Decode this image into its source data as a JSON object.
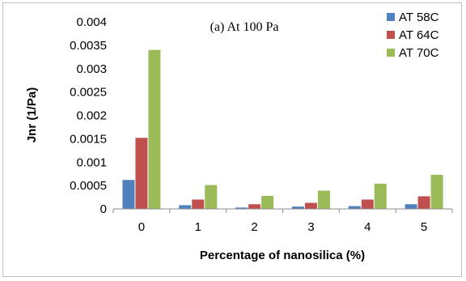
{
  "chart_data": {
    "type": "bar",
    "annotation": "(a) At 100 Pa",
    "xlabel": "Percentage of nanosilica  (%)",
    "ylabel": "Jnr (1/Pa)",
    "categories": [
      "0",
      "1",
      "2",
      "3",
      "4",
      "5"
    ],
    "ylim": [
      0,
      0.004
    ],
    "yticks": [
      "0",
      "0.0005",
      "0.001",
      "0.0015",
      "0.002",
      "0.0025",
      "0.003",
      "0.0035",
      "0.004"
    ],
    "series": [
      {
        "name": "AT 58C",
        "color": "#4f81bd",
        "values": [
          0.00062,
          8e-05,
          3e-05,
          5e-05,
          6e-05,
          0.0001
        ]
      },
      {
        "name": "AT 64C",
        "color": "#c0504d",
        "values": [
          0.00152,
          0.0002,
          0.0001,
          0.00013,
          0.0002,
          0.00027
        ]
      },
      {
        "name": "AT 70C",
        "color": "#9bbb59",
        "values": [
          0.0034,
          0.00051,
          0.00028,
          0.00039,
          0.00054,
          0.00073
        ]
      }
    ],
    "grid": false,
    "legend_position": "top-right"
  }
}
